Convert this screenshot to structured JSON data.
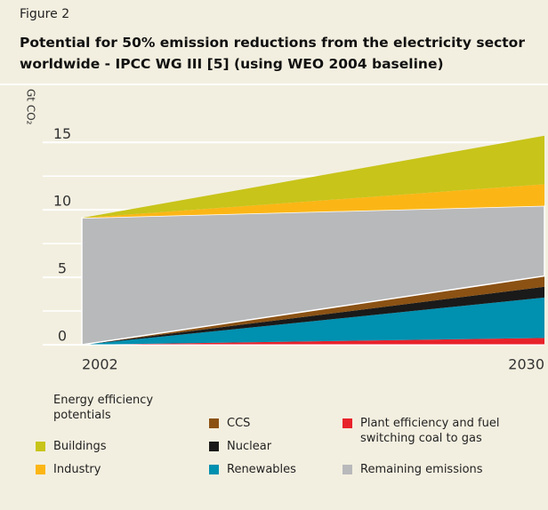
{
  "chart_data": {
    "type": "stacked_area",
    "figure_label": "Figure 2",
    "title": "Potential for 50% emission reductions from the electricity sector worldwide - IPCC WG III [5] (using WEO 2004 baseline)",
    "y_label": "Gt CO₂",
    "legend_title": "Energy efficiency potentials",
    "x": [
      2002,
      2030
    ],
    "xlim": [
      2002,
      2030
    ],
    "xticks": [
      2002,
      2030
    ],
    "ylim": [
      0,
      19.3
    ],
    "yticks": [
      0,
      5,
      10,
      15
    ],
    "grid": true,
    "series": [
      {
        "name": "Plant efficiency and fuel switching coal to gas",
        "color": "#e8222b",
        "values": [
          0,
          0.5
        ]
      },
      {
        "name": "Renewables",
        "color": "#0090b0",
        "values": [
          0,
          3.0
        ]
      },
      {
        "name": "Nuclear",
        "color": "#1a1a1a",
        "values": [
          0,
          0.8
        ]
      },
      {
        "name": "CCS",
        "color": "#8b5214",
        "values": [
          0,
          0.8
        ]
      },
      {
        "name": "Remaining emissions",
        "color": "#b8b9bb",
        "values": [
          9.4,
          5.2
        ]
      },
      {
        "name": "Industry",
        "color": "#fbb616",
        "values": [
          0,
          1.6
        ]
      },
      {
        "name": "Buildings",
        "color": "#c8c41a",
        "values": [
          0,
          3.6
        ]
      }
    ]
  }
}
